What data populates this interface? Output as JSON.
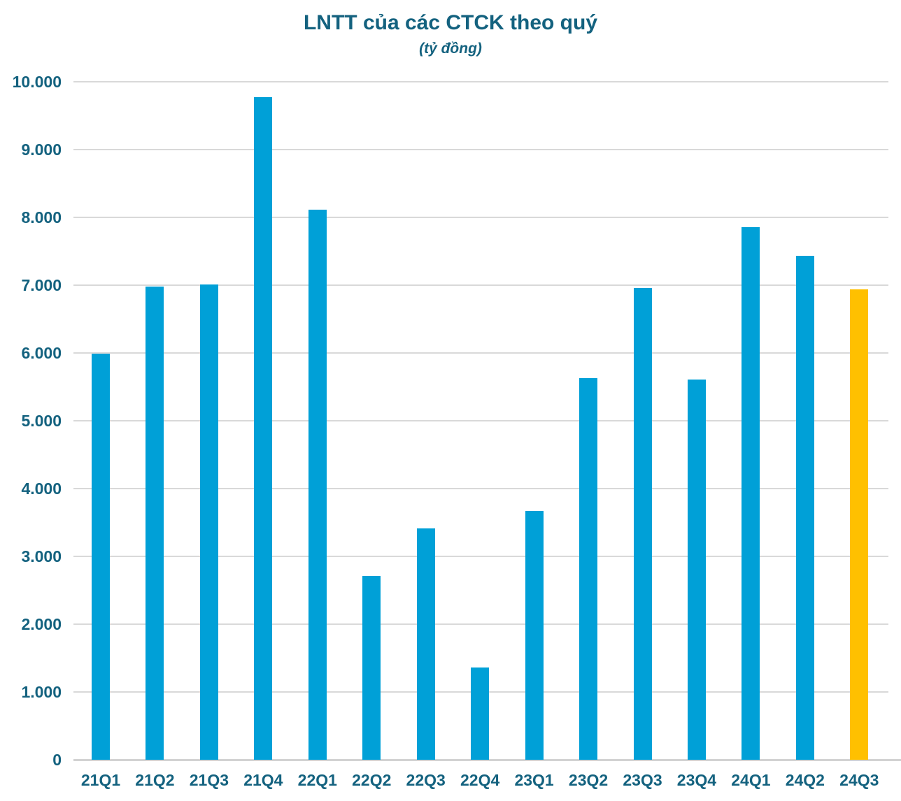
{
  "header": {
    "title": "LNTT của các CTCK theo quý",
    "subtitle": "(tỷ đồng)"
  },
  "colors": {
    "bar": "#00A0D7",
    "highlight_bar": "#FFC000",
    "text": "#14627F",
    "gridline": "#D9D9D9",
    "axis_line": "#D2D2D2"
  },
  "chart_data": {
    "type": "bar",
    "title": "LNTT của các CTCK theo quý",
    "unit_label": "(tỷ đồng)",
    "categories": [
      "21Q1",
      "21Q2",
      "21Q3",
      "21Q4",
      "22Q1",
      "22Q2",
      "22Q3",
      "22Q4",
      "23Q1",
      "23Q2",
      "23Q3",
      "23Q4",
      "24Q1",
      "24Q2",
      "24Q3"
    ],
    "values": [
      5990,
      6980,
      7010,
      9770,
      8110,
      2710,
      3410,
      1360,
      3670,
      5630,
      6960,
      5610,
      7860,
      7430,
      6940
    ],
    "highlight_index": 14,
    "ylim": [
      0,
      10000
    ],
    "ytick_interval": 1000,
    "ytick_labels": [
      "0",
      "1.000",
      "2.000",
      "3.000",
      "4.000",
      "5.000",
      "6.000",
      "7.000",
      "8.000",
      "9.000",
      "10.000"
    ],
    "grid": true,
    "legend": "none"
  }
}
